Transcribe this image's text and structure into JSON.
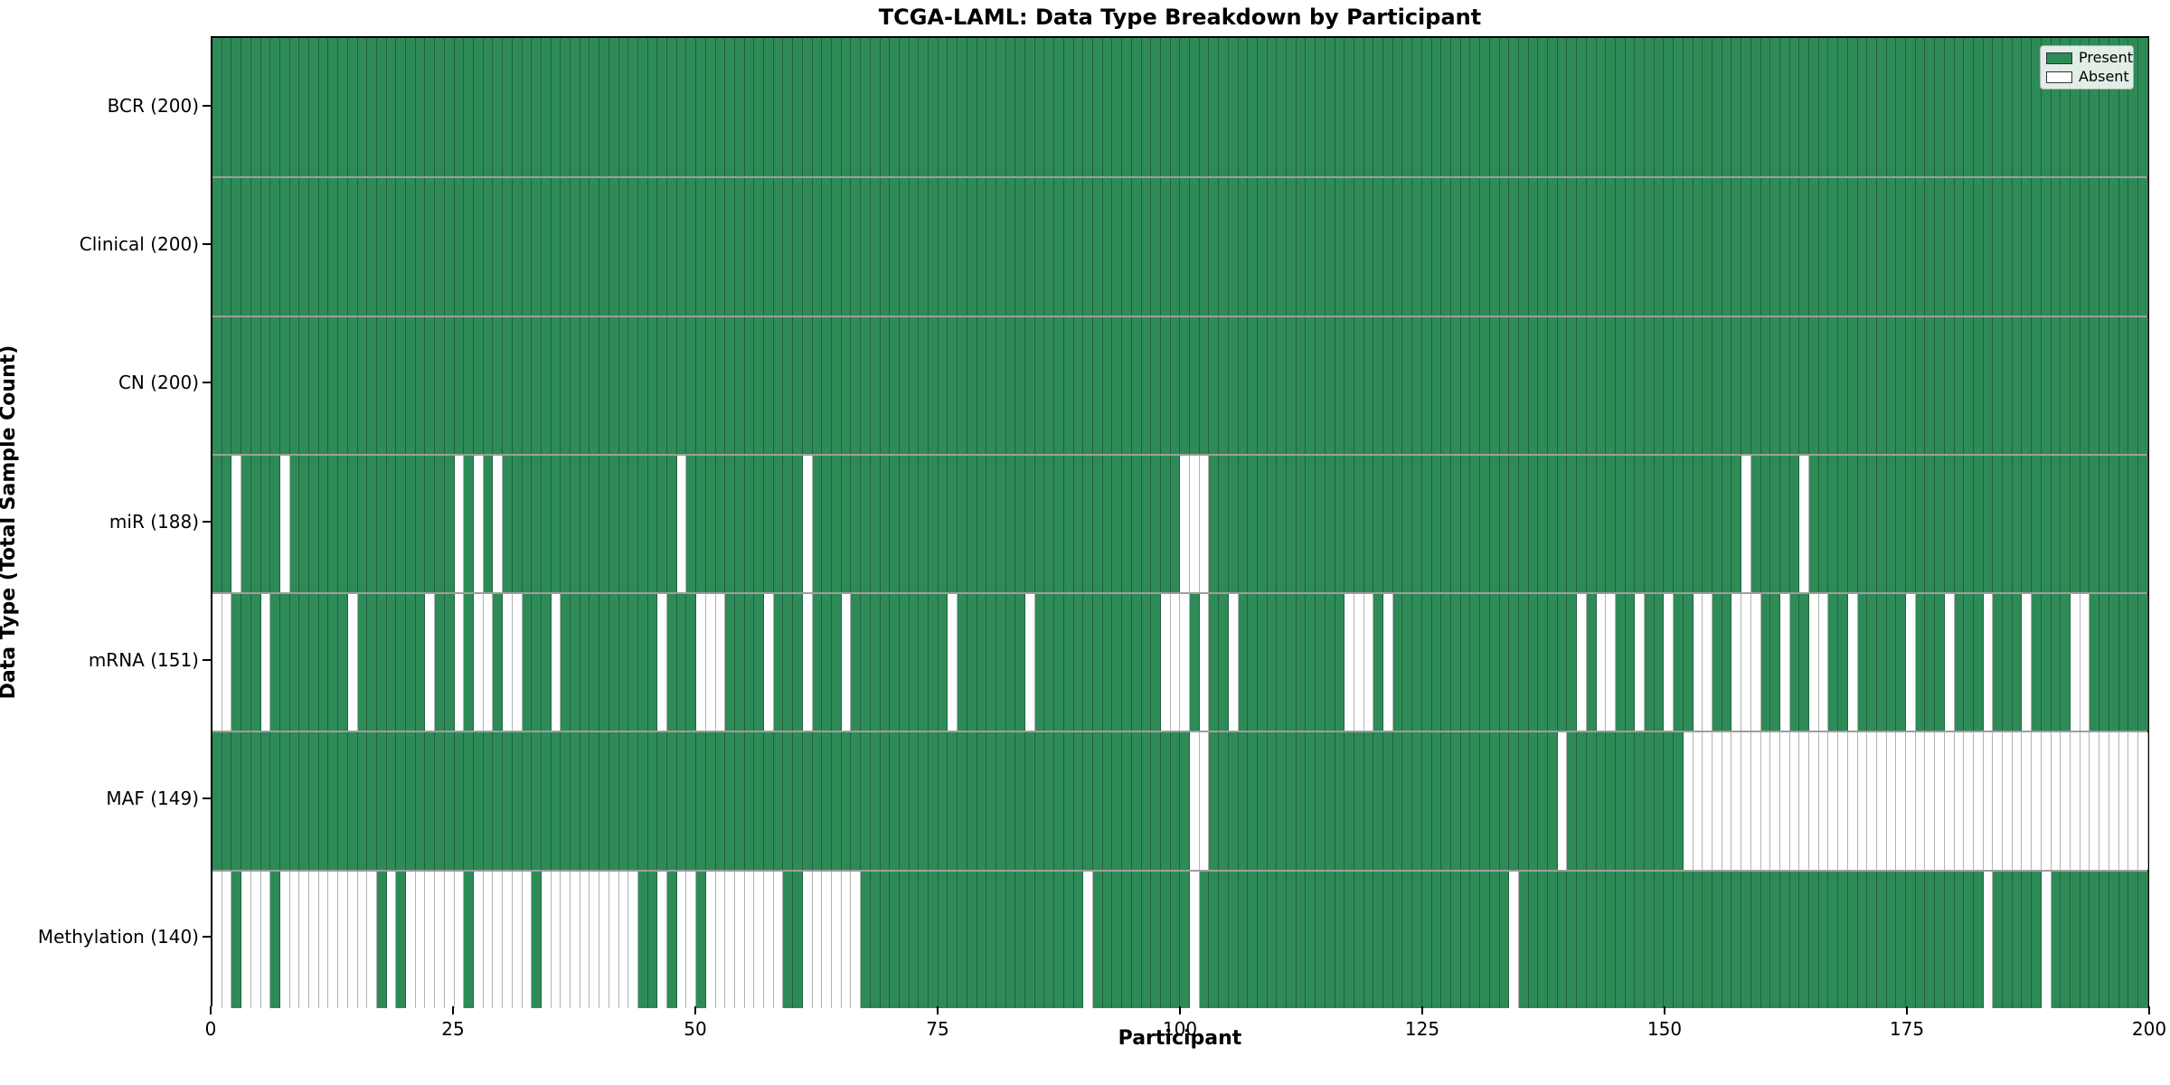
{
  "title": "TCGA-LAML: Data Type Breakdown by Participant",
  "xlabel": "Participant",
  "ylabel": "Data Type (Total Sample Count)",
  "legend": {
    "present_label": "Present",
    "absent_label": "Absent"
  },
  "colors": {
    "present": "#2e8b57",
    "absent": "#ffffff",
    "grid": "rgba(0,0,0,0.30)"
  },
  "chart_data": {
    "type": "heatmap",
    "title": "TCGA-LAML: Data Type Breakdown by Participant",
    "xlabel": "Participant",
    "ylabel": "Data Type (Total Sample Count)",
    "legend_entries": [
      "Present",
      "Absent"
    ],
    "legend_position": "upper right",
    "n_participants": 200,
    "x_ticks": [
      0,
      25,
      50,
      75,
      100,
      125,
      150,
      175,
      200
    ],
    "value_encoding": {
      "present": 1,
      "absent": 0
    },
    "rows": [
      {
        "label": "BCR (200)",
        "name": "BCR",
        "total_present": 200,
        "absent_participants": []
      },
      {
        "label": "Clinical (200)",
        "name": "Clinical",
        "total_present": 200,
        "absent_participants": []
      },
      {
        "label": "CN (200)",
        "name": "CN",
        "total_present": 200,
        "absent_participants": []
      },
      {
        "label": "miR (188)",
        "name": "miR",
        "total_present": 188,
        "absent_participants": [
          2,
          7,
          25,
          27,
          29,
          48,
          61,
          100,
          101,
          102,
          158,
          164
        ]
      },
      {
        "label": "mRNA (151)",
        "name": "mRNA",
        "total_present": 151,
        "absent_participants": [
          0,
          1,
          5,
          14,
          22,
          25,
          27,
          28,
          30,
          31,
          35,
          46,
          50,
          51,
          52,
          57,
          61,
          65,
          76,
          84,
          98,
          99,
          100,
          102,
          105,
          117,
          118,
          119,
          121,
          141,
          143,
          144,
          147,
          150,
          153,
          154,
          157,
          158,
          159,
          162,
          165,
          166,
          169,
          175,
          179,
          183,
          187,
          192,
          193
        ]
      },
      {
        "label": "MAF (149)",
        "name": "MAF",
        "total_present": 149,
        "absent_participants": [
          101,
          102,
          139,
          152,
          153,
          154,
          155,
          156,
          157,
          158,
          159,
          160,
          161,
          162,
          163,
          164,
          165,
          166,
          167,
          168,
          169,
          170,
          171,
          172,
          173,
          174,
          175,
          176,
          177,
          178,
          179,
          180,
          181,
          182,
          183,
          184,
          185,
          186,
          187,
          188,
          189,
          190,
          191,
          192,
          193,
          194,
          195,
          196,
          197,
          198,
          199
        ]
      },
      {
        "label": "Methylation (140)",
        "name": "Methylation",
        "total_present": 140,
        "absent_participants": [
          0,
          1,
          3,
          4,
          5,
          7,
          8,
          9,
          10,
          11,
          12,
          13,
          14,
          15,
          16,
          18,
          20,
          21,
          22,
          23,
          24,
          25,
          27,
          28,
          29,
          30,
          31,
          32,
          34,
          35,
          36,
          37,
          38,
          39,
          40,
          41,
          42,
          43,
          46,
          48,
          49,
          51,
          52,
          53,
          54,
          55,
          56,
          57,
          58,
          61,
          62,
          63,
          64,
          65,
          66,
          90,
          101,
          134,
          183,
          189
        ]
      }
    ]
  }
}
